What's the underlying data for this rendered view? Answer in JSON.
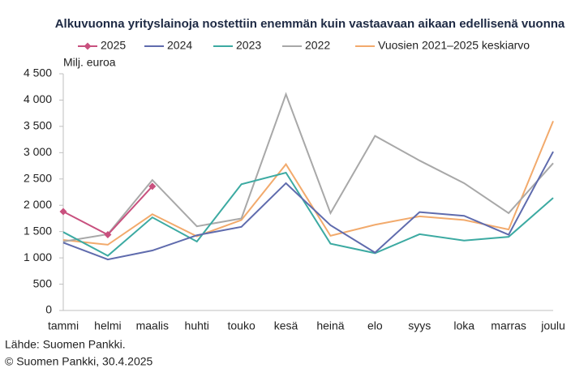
{
  "chart_data": {
    "type": "line",
    "title": "Alkuvuonna yrityslainoja nostettiin enemmän kuin vastaavaan aikaan edellisenä vuonna",
    "y_label": "Milj. euroa",
    "categories": [
      "tammi",
      "helmi",
      "maalis",
      "huhti",
      "touko",
      "kesä",
      "heinä",
      "elo",
      "syys",
      "loka",
      "marras",
      "joulu"
    ],
    "series": [
      {
        "name": "2025",
        "color": "#c8507e",
        "marker": "diamond",
        "values": [
          1880,
          1440,
          2360,
          null,
          null,
          null,
          null,
          null,
          null,
          null,
          null,
          null
        ]
      },
      {
        "name": "2024",
        "color": "#5f6bad",
        "values": [
          1290,
          970,
          1140,
          1430,
          1590,
          2420,
          1620,
          1100,
          1870,
          1800,
          1440,
          3020
        ]
      },
      {
        "name": "2023",
        "color": "#3caaa2",
        "values": [
          1490,
          1040,
          1770,
          1310,
          2400,
          2620,
          1270,
          1090,
          1450,
          1330,
          1400,
          2140
        ]
      },
      {
        "name": "2022",
        "color": "#a8a8a8",
        "values": [
          1310,
          1450,
          2480,
          1600,
          1750,
          4110,
          1850,
          3320,
          2850,
          2420,
          1850,
          2800
        ]
      },
      {
        "name": "Vuosien 2021–2025 keskiarvo",
        "color": "#f2aa6c",
        "values": [
          1340,
          1250,
          1830,
          1410,
          1720,
          2780,
          1420,
          1630,
          1790,
          1720,
          1540,
          3600
        ]
      }
    ],
    "ylim": [
      0,
      4500
    ],
    "yticks": [
      {
        "value": 4500,
        "label": "4 500"
      },
      {
        "value": 4000,
        "label": "4 000"
      },
      {
        "value": 3500,
        "label": "3 500"
      },
      {
        "value": 3000,
        "label": "3 000"
      },
      {
        "value": 2500,
        "label": "2 500"
      },
      {
        "value": 2000,
        "label": "2 000"
      },
      {
        "value": 1500,
        "label": "1 500"
      },
      {
        "value": 1000,
        "label": "1 000"
      },
      500,
      0
    ],
    "legend": "top",
    "notes": [
      "Lähde: Suomen Pankki.",
      "© Suomen Pankki, 30.4.2025"
    ]
  }
}
